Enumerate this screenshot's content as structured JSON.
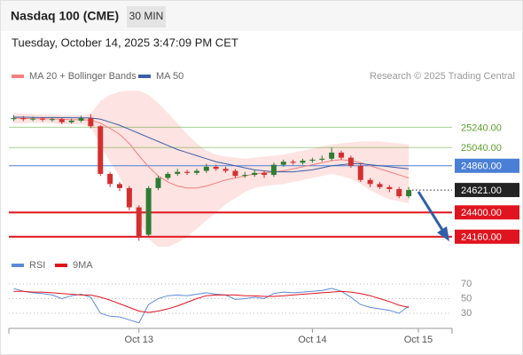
{
  "header": {
    "title": "Nasdaq 100 (CME)",
    "interval": "30 MIN",
    "timestamp": "Tuesday, October 14, 2025 3:47:09 PM CET"
  },
  "chart_data": [
    {
      "type": "candlestick",
      "credit": "Research © 2025 Trading Central",
      "up_color": "#2e7d32",
      "down_color": "#d32f2f",
      "ylim": [
        24000,
        25620
      ],
      "open": [
        25320,
        25330,
        25320,
        25325,
        25315,
        25320,
        25290,
        25305,
        25330,
        25250,
        24780,
        24680,
        24640,
        24450,
        24180,
        24640,
        24740,
        24780,
        24800,
        24790,
        24810,
        24850,
        24830,
        24810,
        24760,
        24770,
        24790,
        24770,
        24870,
        24900,
        24890,
        24910,
        24920,
        24930,
        24990,
        24940,
        24860,
        24720,
        24680,
        24650,
        24630,
        24560,
        null,
        null,
        null,
        null
      ],
      "high": [
        25360,
        25350,
        25345,
        25340,
        25340,
        25335,
        25325,
        25355,
        25370,
        25260,
        24800,
        24700,
        24660,
        24470,
        24660,
        24760,
        24800,
        24830,
        24820,
        24830,
        24880,
        24870,
        24850,
        24830,
        24800,
        24820,
        24810,
        24890,
        24920,
        24920,
        24930,
        24940,
        24960,
        25040,
        25010,
        24960,
        24880,
        24740,
        24700,
        24670,
        24650,
        24650,
        null,
        null,
        null,
        null
      ],
      "low": [
        25300,
        25300,
        25300,
        25295,
        25295,
        25270,
        25275,
        25290,
        25230,
        24760,
        24650,
        24610,
        24420,
        24120,
        24160,
        24620,
        24720,
        24760,
        24770,
        24770,
        24790,
        24810,
        24790,
        24740,
        24740,
        24750,
        24740,
        24750,
        24850,
        24870,
        24870,
        24890,
        24900,
        24910,
        24920,
        24840,
        24700,
        24650,
        24630,
        24600,
        24540,
        24540,
        null,
        null,
        null,
        null
      ],
      "close": [
        25330,
        25320,
        25325,
        25315,
        25320,
        25290,
        25305,
        25330,
        25250,
        24780,
        24680,
        24640,
        24450,
        24150,
        24640,
        24740,
        24780,
        24800,
        24790,
        24810,
        24850,
        24830,
        24810,
        24760,
        24770,
        24790,
        24770,
        24870,
        24900,
        24890,
        24910,
        24920,
        24930,
        24990,
        24940,
        24860,
        24720,
        24680,
        24650,
        24630,
        24560,
        24621,
        null,
        null,
        null,
        null
      ],
      "series": [
        {
          "name": "MA 20 + Bollinger Bands",
          "color": "#f08080",
          "band_color": "#fde3e1",
          "values": [
            25330,
            25328,
            25326,
            25324,
            25322,
            25320,
            25315,
            25315,
            25310,
            25280,
            25230,
            25170,
            25080,
            24960,
            24850,
            24760,
            24700,
            24660,
            24640,
            24640,
            24660,
            24690,
            24720,
            24740,
            24760,
            24780,
            24790,
            24800,
            24810,
            24830,
            24850,
            24870,
            24890,
            24910,
            24920,
            24910,
            24890,
            24860,
            24830,
            24800,
            24770,
            24740,
            null,
            null,
            null,
            null
          ],
          "upper": [
            25380,
            25375,
            25370,
            25365,
            25365,
            25360,
            25360,
            25360,
            25370,
            25500,
            25560,
            25590,
            25600,
            25600,
            25560,
            25480,
            25380,
            25280,
            25170,
            25080,
            25010,
            24970,
            24950,
            24940,
            24930,
            24940,
            24950,
            24960,
            24970,
            24990,
            25010,
            25030,
            25050,
            25070,
            25080,
            25090,
            25100,
            25100,
            25100,
            25090,
            25080,
            25070,
            null,
            null,
            null,
            null
          ],
          "lower": [
            25280,
            25280,
            25285,
            25285,
            25280,
            25270,
            25270,
            25270,
            25250,
            25060,
            24900,
            24750,
            24560,
            24320,
            24140,
            24060,
            24060,
            24100,
            24160,
            24240,
            24320,
            24400,
            24480,
            24540,
            24600,
            24640,
            24660,
            24670,
            24680,
            24700,
            24720,
            24740,
            24760,
            24780,
            24760,
            24730,
            24680,
            24620,
            24570,
            24530,
            24510,
            24490,
            null,
            null,
            null,
            null
          ]
        },
        {
          "name": "MA 50",
          "color": "#3b5ea8",
          "values": [
            25340,
            25340,
            25338,
            25337,
            25336,
            25335,
            25334,
            25333,
            25332,
            25320,
            25290,
            25260,
            25220,
            25180,
            25140,
            25100,
            25060,
            25020,
            24990,
            24960,
            24930,
            24900,
            24880,
            24860,
            24840,
            24820,
            24810,
            24800,
            24800,
            24800,
            24810,
            24820,
            24840,
            24860,
            24870,
            24880,
            24880,
            24870,
            24860,
            24850,
            24840,
            24830,
            null,
            null,
            null,
            null
          ]
        }
      ],
      "levels": [
        {
          "value": 25240,
          "label": "25240.00",
          "color": "#5aa02c",
          "line": "solid",
          "box": false
        },
        {
          "value": 25040,
          "label": "25040.00",
          "color": "#5aa02c",
          "line": "solid",
          "box": false
        },
        {
          "value": 24860,
          "label": "24860.00",
          "color": "#4a7fd6",
          "line": "solid",
          "box": true
        },
        {
          "value": 24621,
          "label": "24621.00",
          "color": "#222222",
          "line": "dotted",
          "box": true
        },
        {
          "value": 24400,
          "label": "24400.00",
          "color": "#e0141e",
          "line": "solid",
          "box": true
        },
        {
          "value": 24160,
          "label": "24160.00",
          "color": "#e0141e",
          "line": "solid",
          "box": true
        }
      ]
    },
    {
      "type": "line",
      "categories": [
        null,
        null,
        null,
        null,
        null,
        null,
        null,
        null,
        null,
        null,
        null,
        null,
        null,
        "Oct 13",
        null,
        null,
        null,
        null,
        null,
        null,
        null,
        null,
        null,
        null,
        null,
        null,
        null,
        null,
        null,
        null,
        null,
        "Oct 14",
        null,
        null,
        null,
        null,
        null,
        null,
        null,
        null,
        null,
        null,
        "Oct 15",
        null,
        null,
        null
      ],
      "ylim": [
        10,
        80
      ],
      "yticks": [
        70,
        50,
        30
      ],
      "grid": true,
      "series": [
        {
          "name": "RSI",
          "color": "#5b8bd9",
          "values": [
            64,
            60,
            58,
            57,
            55,
            50,
            54,
            56,
            52,
            30,
            26,
            25,
            21,
            17,
            42,
            50,
            54,
            55,
            54,
            56,
            58,
            56,
            55,
            49,
            50,
            52,
            50,
            57,
            59,
            58,
            59,
            60,
            61,
            64,
            60,
            52,
            42,
            38,
            36,
            34,
            30,
            40,
            null,
            null,
            null,
            null
          ]
        },
        {
          "name": "9MA",
          "color": "#e0141e",
          "values": [
            60,
            60,
            59,
            59,
            58,
            57,
            56,
            55,
            55,
            52,
            48,
            43,
            38,
            33,
            31,
            33,
            36,
            40,
            45,
            50,
            54,
            55,
            55,
            55,
            54,
            54,
            53,
            53,
            54,
            55,
            56,
            57,
            58,
            59,
            60,
            59,
            57,
            54,
            50,
            46,
            41,
            38,
            null,
            null,
            null,
            null
          ]
        }
      ]
    }
  ]
}
